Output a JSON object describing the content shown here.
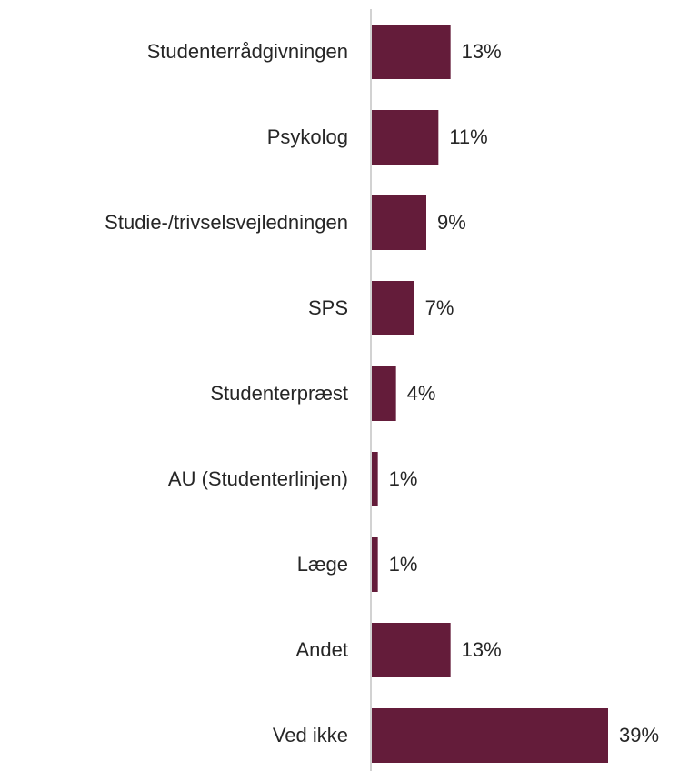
{
  "chart_data": {
    "type": "bar",
    "orientation": "horizontal",
    "categories": [
      "Studenterrådgivningen",
      "Psykolog",
      "Studie-/trivselsvejledningen",
      "SPS",
      "Studenterpræst",
      "AU (Studenterlinjen)",
      "Læge",
      "Andet",
      "Ved ikke"
    ],
    "values": [
      13,
      11,
      9,
      7,
      4,
      1,
      1,
      13,
      39
    ],
    "value_labels": [
      "13%",
      "11%",
      "9%",
      "7%",
      "4%",
      "1%",
      "1%",
      "13%",
      "39%"
    ],
    "color": "#641c3a"
  }
}
